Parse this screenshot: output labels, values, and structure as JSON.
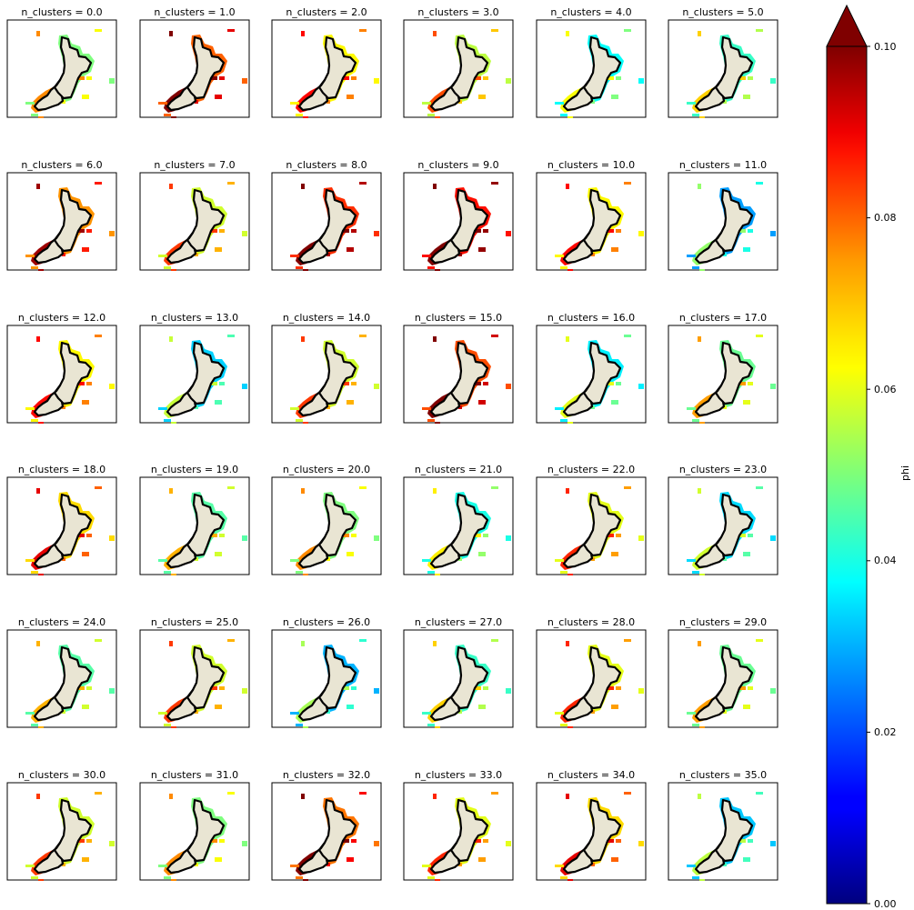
{
  "chart_data": {
    "type": "heatmap",
    "description": "Faceted map grid: 36 maps of New Zealand coastal waters colored by phi, one per n_clusters value",
    "facet_variable": "n_clusters",
    "panel_titles": [
      "n_clusters = 0.0",
      "n_clusters = 1.0",
      "n_clusters = 2.0",
      "n_clusters = 3.0",
      "n_clusters = 4.0",
      "n_clusters = 5.0",
      "n_clusters = 6.0",
      "n_clusters = 7.0",
      "n_clusters = 8.0",
      "n_clusters = 9.0",
      "n_clusters = 10.0",
      "n_clusters = 11.0",
      "n_clusters = 12.0",
      "n_clusters = 13.0",
      "n_clusters = 14.0",
      "n_clusters = 15.0",
      "n_clusters = 16.0",
      "n_clusters = 17.0",
      "n_clusters = 18.0",
      "n_clusters = 19.0",
      "n_clusters = 20.0",
      "n_clusters = 21.0",
      "n_clusters = 22.0",
      "n_clusters = 23.0",
      "n_clusters = 24.0",
      "n_clusters = 25.0",
      "n_clusters = 26.0",
      "n_clusters = 27.0",
      "n_clusters = 28.0",
      "n_clusters = 29.0",
      "n_clusters = 30.0",
      "n_clusters = 31.0",
      "n_clusters = 32.0",
      "n_clusters = 33.0",
      "n_clusters = 34.0",
      "n_clusters = 35.0"
    ],
    "approx_phi_level_by_panel": [
      0.062,
      0.09,
      0.075,
      0.068,
      0.05,
      0.055,
      0.085,
      0.07,
      0.095,
      0.098,
      0.075,
      0.04,
      0.075,
      0.045,
      0.07,
      0.092,
      0.048,
      0.06,
      0.078,
      0.058,
      0.062,
      0.052,
      0.072,
      0.046,
      0.058,
      0.07,
      0.042,
      0.055,
      0.072,
      0.06,
      0.07,
      0.062,
      0.088,
      0.072,
      0.078,
      0.044
    ],
    "colorbar": {
      "label": "phi",
      "colormap": "jet",
      "vmin": 0.0,
      "vmax": 0.1,
      "ticks": [
        "0.00",
        "0.02",
        "0.04",
        "0.06",
        "0.08",
        "0.10"
      ],
      "extend": "max"
    },
    "land_color": "#e9e5d3",
    "coastline_color": "#000000"
  }
}
